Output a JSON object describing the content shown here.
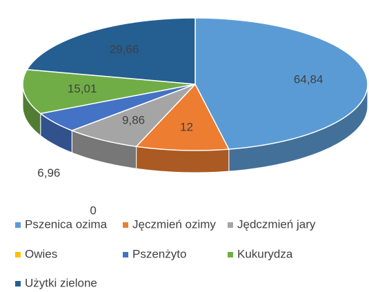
{
  "chart_data": {
    "type": "pie3d",
    "categories": [
      "Pszenica ozima",
      "Jęczmień ozimy",
      "Jędczmień jary",
      "Owies",
      "Pszenżyto",
      "Kukurydza",
      "Użytki zielone"
    ],
    "values": [
      64.84,
      12,
      9.86,
      0,
      6.96,
      15.01,
      29.66
    ],
    "value_labels": [
      "64,84",
      "12",
      "9,86",
      "0",
      "6,96",
      "15,01",
      "29,66"
    ],
    "colors": [
      "#5b9bd5",
      "#ed7d31",
      "#a5a5a5",
      "#ffc000",
      "#4472c4",
      "#70ad47",
      "#255e91"
    ],
    "legend": "bottom"
  }
}
